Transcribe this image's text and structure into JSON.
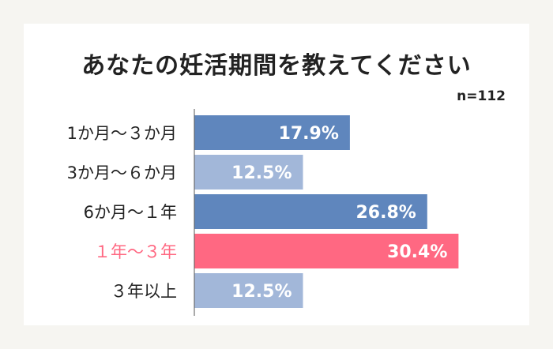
{
  "title": "あなたの妊活期間を教えてください",
  "sample_note": "n=112",
  "colors": {
    "background": "#f6f5f1",
    "card": "#ffffff",
    "bar_dark": "#5f86bd",
    "bar_light": "#a2b7d9",
    "bar_highlight": "#ff6882",
    "label_default": "#222222",
    "label_highlight": "#ff6882",
    "axis": "#555555"
  },
  "chart_data": {
    "type": "bar",
    "orientation": "horizontal",
    "title": "あなたの妊活期間を教えてください",
    "categories": [
      "1か月〜３か月",
      "3か月〜６か月",
      "6か月〜１年",
      "１年〜３年",
      "３年以上"
    ],
    "values": [
      17.9,
      12.5,
      26.8,
      30.4,
      12.5
    ],
    "value_labels": [
      "17.9%",
      "12.5%",
      "26.8%",
      "30.4%",
      "12.5%"
    ],
    "bar_color_keys": [
      "bar_dark",
      "bar_light",
      "bar_dark",
      "bar_highlight",
      "bar_light"
    ],
    "highlight_index": 3,
    "xlim": [
      0,
      40
    ],
    "grid": false,
    "legend": "none"
  }
}
